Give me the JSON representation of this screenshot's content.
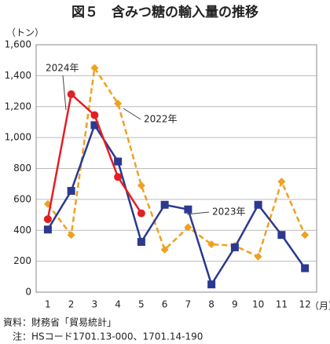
{
  "chart_data": {
    "type": "line",
    "title": "図５　含みつ糖の輸入量の推移",
    "y_unit": "（トン）",
    "x_unit": "（月）",
    "categories": [
      "1",
      "2",
      "3",
      "4",
      "5",
      "6",
      "7",
      "8",
      "9",
      "10",
      "11",
      "12"
    ],
    "series": [
      {
        "name": "2022年",
        "color": "#f0a020",
        "dashed": true,
        "marker": "diamond",
        "values": [
          570,
          370,
          1450,
          1220,
          690,
          275,
          420,
          310,
          300,
          230,
          715,
          370
        ]
      },
      {
        "name": "2023年",
        "color": "#2b3990",
        "dashed": false,
        "marker": "square",
        "values": [
          405,
          655,
          1080,
          845,
          325,
          565,
          535,
          50,
          290,
          565,
          370,
          155
        ]
      },
      {
        "name": "2024年",
        "color": "#e31e24",
        "dashed": false,
        "marker": "circle",
        "values": [
          472,
          1280,
          1145,
          745,
          510,
          null,
          null,
          null,
          null,
          null,
          null,
          null
        ]
      }
    ],
    "ylim": [
      0,
      1600
    ],
    "yticks": [
      0,
      200,
      400,
      600,
      800,
      {
        "value": 1000,
        "label": "1,000"
      },
      {
        "value": 1200,
        "label": "1,200"
      },
      {
        "value": 1400,
        "label": "1,400"
      },
      {
        "value": 1600,
        "label": "1,600"
      }
    ],
    "grid": true,
    "notes": [
      "資料：財務省「貿易統計」",
      "注：HSコード1701.13-000、1701.14-190"
    ]
  }
}
